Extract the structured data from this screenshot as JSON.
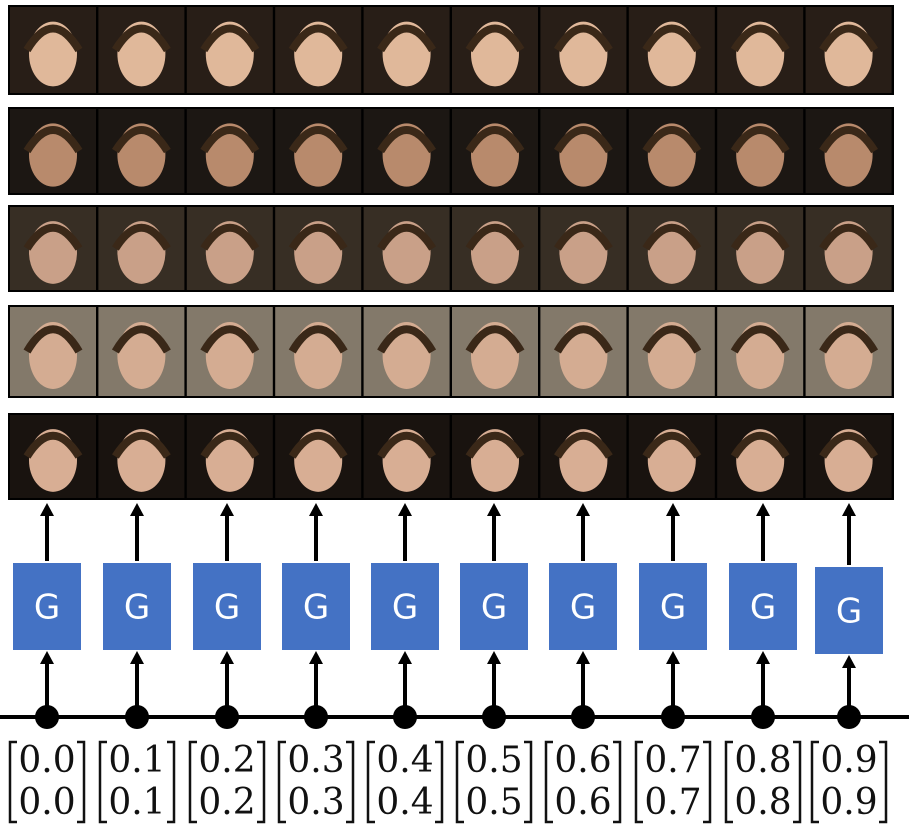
{
  "columns": [
    {
      "generator": "G",
      "vector": [
        "0.0",
        "0.0"
      ]
    },
    {
      "generator": "G",
      "vector": [
        "0.1",
        "0.1"
      ]
    },
    {
      "generator": "G",
      "vector": [
        "0.2",
        "0.2"
      ]
    },
    {
      "generator": "G",
      "vector": [
        "0.3",
        "0.3"
      ]
    },
    {
      "generator": "G",
      "vector": [
        "0.4",
        "0.4"
      ]
    },
    {
      "generator": "G",
      "vector": [
        "0.5",
        "0.5"
      ]
    },
    {
      "generator": "G",
      "vector": [
        "0.6",
        "0.6"
      ]
    },
    {
      "generator": "G",
      "vector": [
        "0.7",
        "0.7"
      ]
    },
    {
      "generator": "G",
      "vector": [
        "0.8",
        "0.8"
      ]
    },
    {
      "generator": "G",
      "vector": [
        "0.9",
        "0.9"
      ]
    }
  ]
}
